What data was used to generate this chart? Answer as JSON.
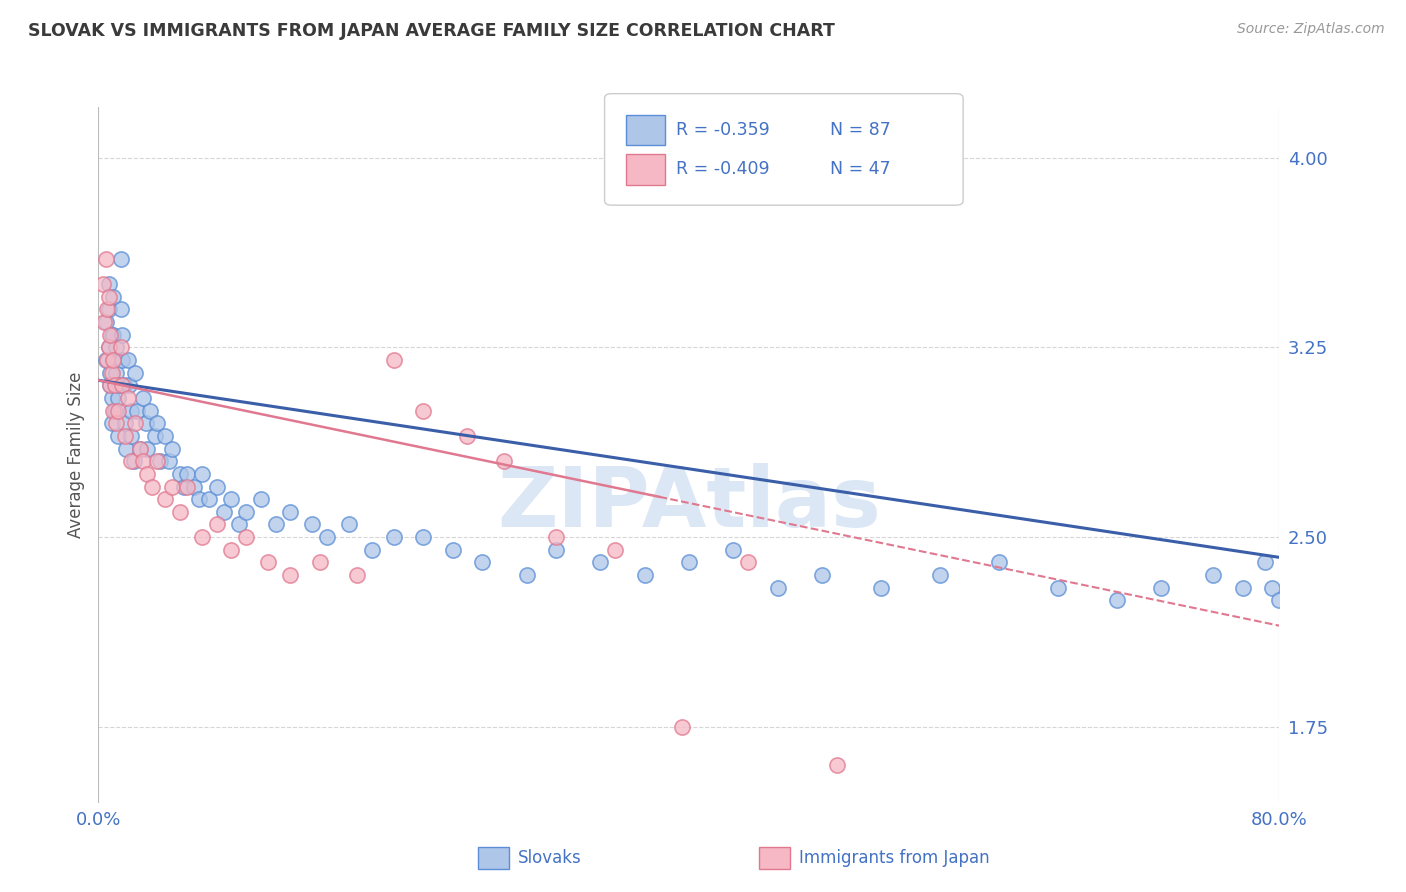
{
  "title": "SLOVAK VS IMMIGRANTS FROM JAPAN AVERAGE FAMILY SIZE CORRELATION CHART",
  "source_text": "Source: ZipAtlas.com",
  "ylabel": "Average Family Size",
  "xlim": [
    0.0,
    0.8
  ],
  "ylim": [
    1.45,
    4.2
  ],
  "yticks": [
    1.75,
    2.5,
    3.25,
    4.0
  ],
  "series1_name": "Slovaks",
  "series1_face_color": "#aec6e8",
  "series1_edge_color": "#5b8ed6",
  "series1_line_color": "#3a5fa8",
  "series2_name": "Immigrants from Japan",
  "series2_face_color": "#f5b8c4",
  "series2_edge_color": "#e07890",
  "series2_line_color": "#e07890",
  "legend_r1": "-0.359",
  "legend_n1": "87",
  "legend_r2": "-0.409",
  "legend_n2": "47",
  "watermark": "ZIPAtlas",
  "watermark_color": "#c5d8ef",
  "background_color": "#ffffff",
  "grid_color": "#cccccc",
  "title_color": "#3a3a3a",
  "axis_color": "#4472c4",
  "slovaks_x": [
    0.005,
    0.005,
    0.007,
    0.007,
    0.007,
    0.008,
    0.008,
    0.009,
    0.009,
    0.009,
    0.01,
    0.01,
    0.01,
    0.011,
    0.011,
    0.012,
    0.012,
    0.013,
    0.013,
    0.014,
    0.015,
    0.015,
    0.016,
    0.016,
    0.017,
    0.018,
    0.019,
    0.02,
    0.021,
    0.022,
    0.022,
    0.024,
    0.025,
    0.026,
    0.028,
    0.03,
    0.032,
    0.033,
    0.035,
    0.038,
    0.04,
    0.042,
    0.045,
    0.048,
    0.05,
    0.055,
    0.058,
    0.06,
    0.065,
    0.068,
    0.07,
    0.075,
    0.08,
    0.085,
    0.09,
    0.095,
    0.1,
    0.11,
    0.12,
    0.13,
    0.145,
    0.155,
    0.17,
    0.185,
    0.2,
    0.22,
    0.24,
    0.26,
    0.29,
    0.31,
    0.34,
    0.37,
    0.4,
    0.43,
    0.46,
    0.49,
    0.53,
    0.57,
    0.61,
    0.65,
    0.69,
    0.72,
    0.755,
    0.775,
    0.79,
    0.795,
    0.8
  ],
  "slovaks_y": [
    3.2,
    3.35,
    3.5,
    3.4,
    3.25,
    3.15,
    3.1,
    3.3,
    3.05,
    2.95,
    3.45,
    3.3,
    3.2,
    3.1,
    3.0,
    3.25,
    3.15,
    3.05,
    2.9,
    3.1,
    3.6,
    3.4,
    3.3,
    3.2,
    3.1,
    2.95,
    2.85,
    3.2,
    3.1,
    3.0,
    2.9,
    2.8,
    3.15,
    3.0,
    2.85,
    3.05,
    2.95,
    2.85,
    3.0,
    2.9,
    2.95,
    2.8,
    2.9,
    2.8,
    2.85,
    2.75,
    2.7,
    2.75,
    2.7,
    2.65,
    2.75,
    2.65,
    2.7,
    2.6,
    2.65,
    2.55,
    2.6,
    2.65,
    2.55,
    2.6,
    2.55,
    2.5,
    2.55,
    2.45,
    2.5,
    2.5,
    2.45,
    2.4,
    2.35,
    2.45,
    2.4,
    2.35,
    2.4,
    2.45,
    2.3,
    2.35,
    2.3,
    2.35,
    2.4,
    2.3,
    2.25,
    2.3,
    2.35,
    2.3,
    2.4,
    2.3,
    2.25
  ],
  "japan_x": [
    0.003,
    0.004,
    0.005,
    0.006,
    0.006,
    0.007,
    0.007,
    0.008,
    0.008,
    0.009,
    0.01,
    0.01,
    0.011,
    0.012,
    0.013,
    0.015,
    0.016,
    0.018,
    0.02,
    0.022,
    0.025,
    0.028,
    0.03,
    0.033,
    0.036,
    0.04,
    0.045,
    0.05,
    0.055,
    0.06,
    0.07,
    0.08,
    0.09,
    0.1,
    0.115,
    0.13,
    0.15,
    0.175,
    0.2,
    0.22,
    0.25,
    0.275,
    0.31,
    0.35,
    0.395,
    0.44,
    0.5
  ],
  "japan_y": [
    3.5,
    3.35,
    3.6,
    3.4,
    3.2,
    3.45,
    3.25,
    3.3,
    3.1,
    3.15,
    3.2,
    3.0,
    3.1,
    2.95,
    3.0,
    3.25,
    3.1,
    2.9,
    3.05,
    2.8,
    2.95,
    2.85,
    2.8,
    2.75,
    2.7,
    2.8,
    2.65,
    2.7,
    2.6,
    2.7,
    2.5,
    2.55,
    2.45,
    2.5,
    2.4,
    2.35,
    2.4,
    2.35,
    3.2,
    3.0,
    2.9,
    2.8,
    2.5,
    2.45,
    1.75,
    2.4,
    1.6
  ]
}
